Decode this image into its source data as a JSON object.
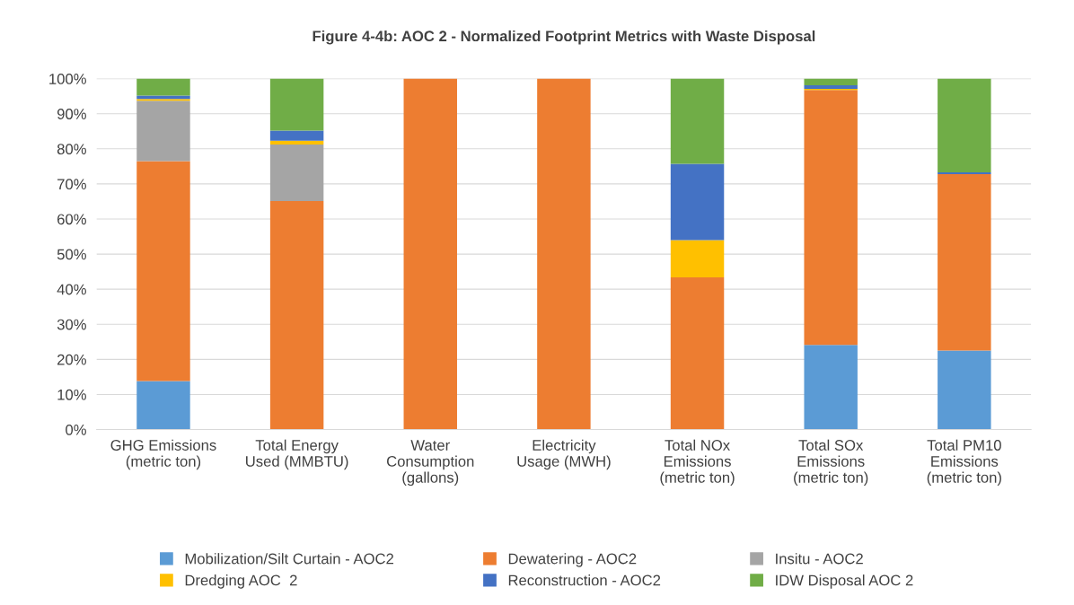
{
  "chart_data": {
    "type": "bar",
    "stacked": true,
    "title": "Figure 4-4b: AOC 2 - Normalized Footprint Metrics with Waste Disposal",
    "categories": [
      "GHG Emissions\n(metric ton)",
      "Total Energy\nUsed (MMBTU)",
      "Water\nConsumption\n(gallons)",
      "Electricity\nUsage (MWH)",
      "Total NOx\nEmissions\n(metric ton)",
      "Total SOx\nEmissions\n(metric ton)",
      "Total PM10\nEmissions\n(metric ton)"
    ],
    "series": [
      {
        "name": "Mobilization/Silt Curtain - AOC2",
        "color": "#5b9bd5",
        "values": [
          13.8,
          0,
          0,
          0,
          0,
          24.1,
          22.5
        ]
      },
      {
        "name": "Dewatering - AOC2",
        "color": "#ed7d31",
        "values": [
          62.7,
          65.1,
          100,
          100,
          43.4,
          72.7,
          50.3
        ]
      },
      {
        "name": "Insitu - AOC2",
        "color": "#a5a5a5",
        "values": [
          17.2,
          16.1,
          0,
          0,
          0,
          0,
          0
        ]
      },
      {
        "name": "Dredging AOC  2",
        "color": "#ffc000",
        "values": [
          0.5,
          1.1,
          0,
          0,
          10.6,
          0.3,
          0
        ]
      },
      {
        "name": "Reconstruction - AOC2",
        "color": "#4472c4",
        "values": [
          1.0,
          2.9,
          0,
          0,
          21.7,
          1.0,
          0.5
        ]
      },
      {
        "name": "IDW Disposal AOC 2",
        "color": "#70ad47",
        "values": [
          4.8,
          14.8,
          0,
          0,
          24.3,
          1.9,
          26.7
        ]
      }
    ],
    "ylim": [
      0,
      100
    ],
    "yticks": [
      {
        "value": 0,
        "label": "0%"
      },
      {
        "value": 10,
        "label": "10%"
      },
      {
        "value": 20,
        "label": "20%"
      },
      {
        "value": 30,
        "label": "30%"
      },
      {
        "value": 40,
        "label": "40%"
      },
      {
        "value": 50,
        "label": "50%"
      },
      {
        "value": 60,
        "label": "60%"
      },
      {
        "value": 70,
        "label": "70%"
      },
      {
        "value": 80,
        "label": "80%"
      },
      {
        "value": 90,
        "label": "90%"
      },
      {
        "value": 100,
        "label": "100%"
      }
    ],
    "grid": "y",
    "legend": "bottom"
  }
}
